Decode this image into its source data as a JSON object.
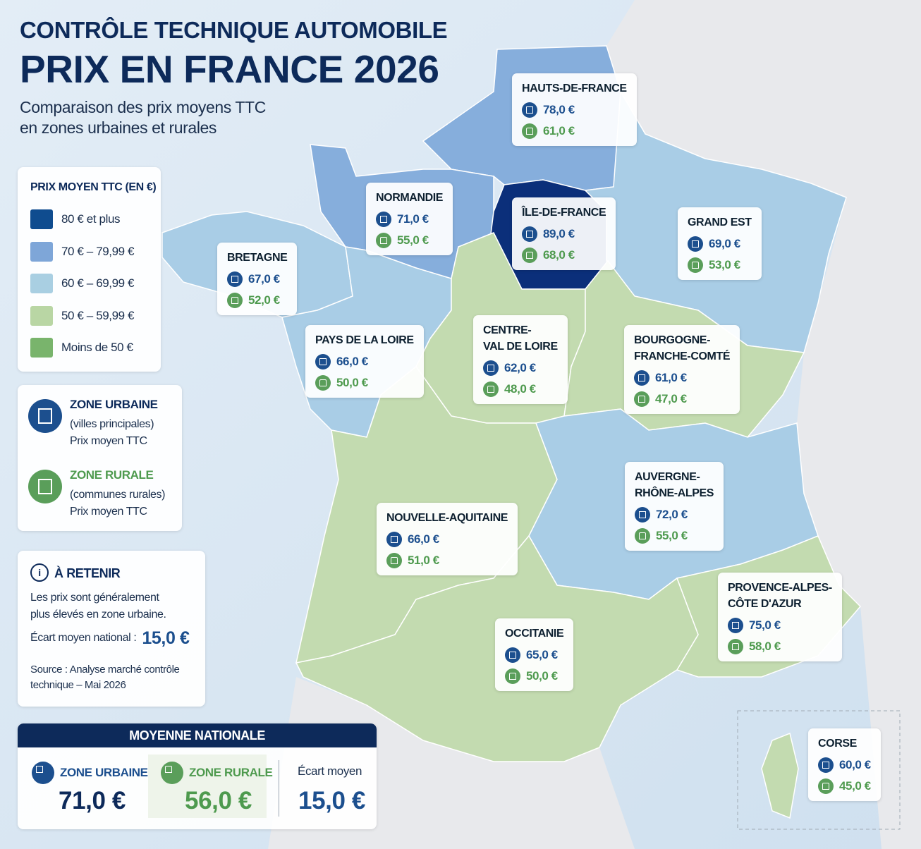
{
  "header": {
    "kicker": "CONTRÔLE TECHNIQUE AUTOMOBILE",
    "title": "PRIX EN FRANCE 2026",
    "subtitle_lines": [
      "Comparaison des prix moyens TTC",
      "en zones urbaines et rurales"
    ]
  },
  "legend": {
    "title": "PRIX MOYEN TTC (EN €)",
    "items": [
      {
        "label": "80 € et plus",
        "color": "#0f4c8f"
      },
      {
        "label": "70 € – 79,99 €",
        "color": "#7ea6d8"
      },
      {
        "label": "60 € – 69,99 €",
        "color": "#a9cfe2"
      },
      {
        "label": "50 € – 59,99 €",
        "color": "#b9d6a4"
      },
      {
        "label": "Moins de 50 €",
        "color": "#79b46c"
      }
    ]
  },
  "zones": {
    "urban": {
      "title": "ZONE URBAINE",
      "lines": [
        "(villes principales)",
        "Prix moyen TTC"
      ]
    },
    "rural": {
      "title": "ZONE RURALE",
      "lines": [
        "(communes rurales)",
        "Prix moyen TTC"
      ]
    }
  },
  "note": {
    "title": "À RETENIR",
    "lines": [
      "Les prix sont généralement",
      "plus élevés en zone urbaine."
    ],
    "gap_label": "Écart moyen national :",
    "gap_value": "15,0 €",
    "source_lines": [
      "Source : Analyse marché contrôle",
      "technique – Mai 2026"
    ]
  },
  "national": {
    "title": "MOYENNE NATIONALE",
    "urban_label": "ZONE URBAINE",
    "urban_value": "71,0 €",
    "rural_label": "ZONE RURALE",
    "rural_value": "56,0 €",
    "gap_label": "Écart moyen",
    "gap_value": "15,0 €"
  },
  "regions": [
    {
      "name_lines": [
        "HAUTS-DE-FRANCE"
      ],
      "urban": "78,0 €",
      "rural": "61,0 €",
      "color": "#86aedc"
    },
    {
      "name_lines": [
        "NORMANDIE"
      ],
      "urban": "71,0 €",
      "rural": "55,0 €",
      "color": "#86aedc"
    },
    {
      "name_lines": [
        "ÎLE-DE-FRANCE"
      ],
      "urban": "89,0 €",
      "rural": "68,0 €",
      "color": "#0b2f7a"
    },
    {
      "name_lines": [
        "GRAND EST"
      ],
      "urban": "69,0 €",
      "rural": "53,0 €",
      "color": "#a9cde6"
    },
    {
      "name_lines": [
        "BRETAGNE"
      ],
      "urban": "67,0 €",
      "rural": "52,0 €",
      "color": "#a9cde6"
    },
    {
      "name_lines": [
        "PAYS DE LA LOIRE"
      ],
      "urban": "66,0 €",
      "rural": "50,0 €",
      "color": "#a9cde6"
    },
    {
      "name_lines": [
        "CENTRE-",
        "VAL DE LOIRE"
      ],
      "urban": "62,0 €",
      "rural": "48,0 €",
      "color": "#c3dbb0"
    },
    {
      "name_lines": [
        "BOURGOGNE-",
        "FRANCHE-COMTÉ"
      ],
      "urban": "61,0 €",
      "rural": "47,0 €",
      "color": "#c3dbb0"
    },
    {
      "name_lines": [
        "NOUVELLE-AQUITAINE"
      ],
      "urban": "66,0 €",
      "rural": "51,0 €",
      "color": "#c3dbb0"
    },
    {
      "name_lines": [
        "AUVERGNE-",
        "RHÔNE-ALPES"
      ],
      "urban": "72,0 €",
      "rural": "55,0 €",
      "color": "#a9cde6"
    },
    {
      "name_lines": [
        "PROVENCE-ALPES-",
        "CÔTE D'AZUR"
      ],
      "urban": "75,0 €",
      "rural": "58,0 €",
      "color": "#c3dbb0"
    },
    {
      "name_lines": [
        "OCCITANIE"
      ],
      "urban": "65,0 €",
      "rural": "50,0 €",
      "color": "#c3dbb0"
    },
    {
      "name_lines": [
        "CORSE"
      ],
      "urban": "60,0 €",
      "rural": "45,0 €",
      "color": "#c3dbb0"
    }
  ]
}
